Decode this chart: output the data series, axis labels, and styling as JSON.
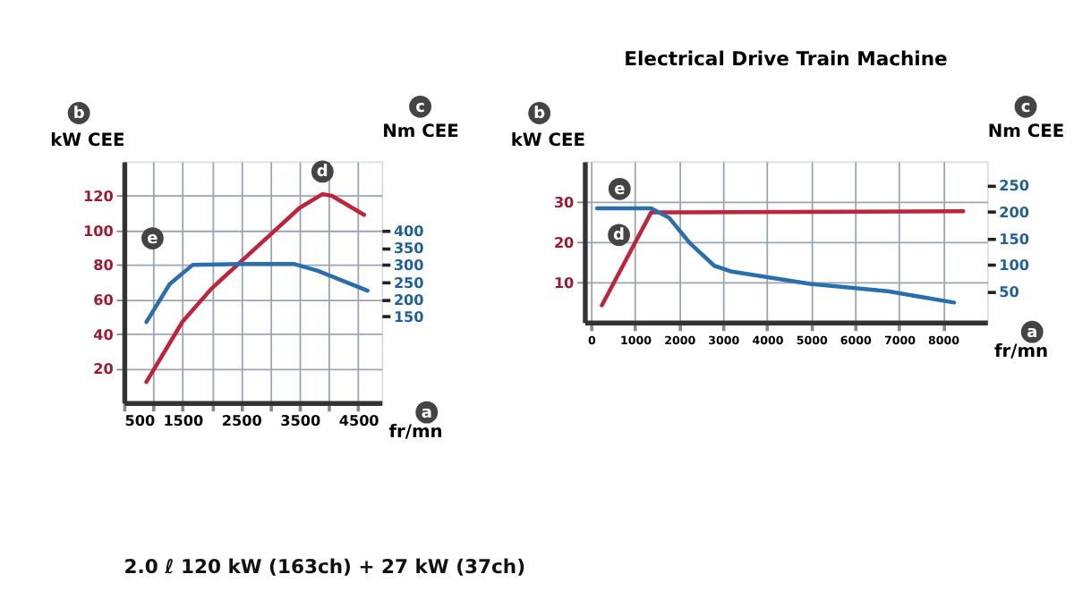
{
  "chart_data": [
    {
      "type": "line",
      "xlabel": "fr/mn",
      "ylabel": "kW CEE",
      "y2label": "Nm CEE",
      "grid": true,
      "xlim": [
        500,
        4900
      ],
      "xticks": [
        500,
        {
          "value": 1000,
          "label": null
        },
        1500,
        {
          "value": 2000,
          "label": null
        },
        2500,
        {
          "value": 3000,
          "label": null
        },
        3500,
        {
          "value": 4000,
          "label": null
        },
        4500
      ],
      "ylim": [
        0,
        140
      ],
      "yticks": [
        20,
        40,
        60,
        80,
        100,
        120
      ],
      "y2lim": [
        -100,
        600
      ],
      "y2ticks": [
        150,
        200,
        250,
        300,
        350,
        400
      ],
      "series": [
        {
          "name": "d",
          "color": "#c0233a",
          "x": [
            883,
            1500,
            1990,
            2500,
            3500,
            3890,
            4050,
            4600
          ],
          "values": [
            12,
            47,
            66,
            82,
            113,
            121,
            120,
            109
          ]
        },
        {
          "name": "e",
          "color": "#2a6fad",
          "axis": "y2",
          "x": [
            883,
            1280,
            1675,
            2500,
            3410,
            3800,
            4660
          ],
          "values": [
            134,
            244,
            300,
            302,
            302,
            283,
            225
          ]
        }
      ],
      "annotations": [
        "a",
        "b",
        "c",
        "2.0 ℓ 120 kW (163ch) + 27 kW (37ch)"
      ]
    },
    {
      "type": "line",
      "title": "Electrical Drive Train Machine",
      "xlabel": "fr/mn",
      "ylabel": "kW CEE",
      "y2label": "Nm CEE",
      "grid": true,
      "xlim": [
        -150,
        9000
      ],
      "xticks": [
        0,
        1000,
        2000,
        3000,
        4000,
        5000,
        6000,
        7000,
        8000
      ],
      "ylim": [
        0,
        40
      ],
      "yticks": [
        10,
        20,
        30
      ],
      "y2lim": [
        -8,
        294
      ],
      "y2ticks": [
        50,
        100,
        150,
        200,
        250
      ],
      "series": [
        {
          "name": "d",
          "color": "#c0233a",
          "x": [
            245,
            1365,
            8460
          ],
          "values": [
            4.2,
            27.3,
            27.6
          ]
        },
        {
          "name": "e",
          "color": "#2a6fad",
          "axis": "y2",
          "x": [
            136,
            1365,
            1775,
            2250,
            2800,
            3200,
            4980,
            6750,
            8250
          ],
          "values": [
            206,
            206,
            188,
            140,
            98,
            87,
            64,
            50,
            29
          ]
        }
      ],
      "annotations": [
        "a",
        "b",
        "c"
      ]
    }
  ]
}
